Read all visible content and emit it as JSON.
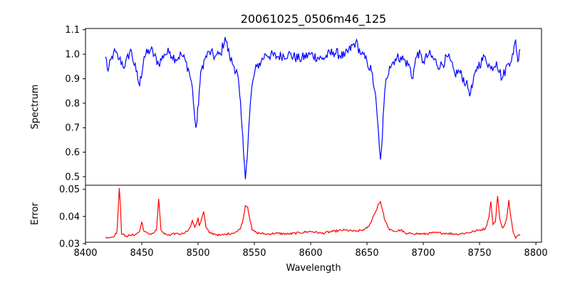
{
  "chart_data": [
    {
      "type": "line",
      "title": "20061025_0506m46_125",
      "xlabel": "",
      "ylabel": "Spectrum",
      "xlim": [
        8400,
        8805
      ],
      "ylim": [
        0.465,
        1.105
      ],
      "yticks": [
        "0.5",
        "0.6",
        "0.7",
        "0.8",
        "0.9",
        "1.0",
        "1.1"
      ],
      "grid": false,
      "series": [
        {
          "color": "#0000ff",
          "anchors": [
            [
              8418,
              0.99
            ],
            [
              8420,
              0.93
            ],
            [
              8425,
              1.01
            ],
            [
              8430,
              0.98
            ],
            [
              8435,
              0.95
            ],
            [
              8440,
              1.02
            ],
            [
              8445,
              0.93
            ],
            [
              8448,
              0.87
            ],
            [
              8452,
              0.99
            ],
            [
              8458,
              1.02
            ],
            [
              8465,
              0.96
            ],
            [
              8470,
              1.0
            ],
            [
              8475,
              1.01
            ],
            [
              8480,
              0.98
            ],
            [
              8485,
              1.0
            ],
            [
              8489,
              0.97
            ],
            [
              8492,
              0.93
            ],
            [
              8495,
              0.86
            ],
            [
              8497,
              0.74
            ],
            [
              8498,
              0.7
            ],
            [
              8499,
              0.72
            ],
            [
              8501,
              0.85
            ],
            [
              8503,
              0.94
            ],
            [
              8506,
              0.98
            ],
            [
              8510,
              1.01
            ],
            [
              8515,
              0.99
            ],
            [
              8520,
              1.0
            ],
            [
              8524,
              1.07
            ],
            [
              8528,
              0.99
            ],
            [
              8532,
              0.95
            ],
            [
              8535,
              0.92
            ],
            [
              8537,
              0.83
            ],
            [
              8539,
              0.7
            ],
            [
              8541,
              0.56
            ],
            [
              8542,
              0.49
            ],
            [
              8543,
              0.55
            ],
            [
              8545,
              0.7
            ],
            [
              8547,
              0.83
            ],
            [
              8549,
              0.9
            ],
            [
              8552,
              0.95
            ],
            [
              8556,
              0.97
            ],
            [
              8560,
              1.0
            ],
            [
              8570,
              0.99
            ],
            [
              8580,
              1.0
            ],
            [
              8590,
              0.98
            ],
            [
              8600,
              1.0
            ],
            [
              8610,
              0.98
            ],
            [
              8620,
              1.01
            ],
            [
              8630,
              0.99
            ],
            [
              8640,
              1.05
            ],
            [
              8645,
              1.0
            ],
            [
              8650,
              0.97
            ],
            [
              8654,
              0.93
            ],
            [
              8657,
              0.85
            ],
            [
              8659,
              0.75
            ],
            [
              8661,
              0.62
            ],
            [
              8662,
              0.57
            ],
            [
              8663,
              0.62
            ],
            [
              8665,
              0.79
            ],
            [
              8667,
              0.9
            ],
            [
              8670,
              0.95
            ],
            [
              8675,
              0.98
            ],
            [
              8680,
              0.99
            ],
            [
              8688,
              0.95
            ],
            [
              8690,
              0.9
            ],
            [
              8695,
              1.01
            ],
            [
              8700,
              0.97
            ],
            [
              8705,
              1.0
            ],
            [
              8715,
              0.95
            ],
            [
              8722,
              0.99
            ],
            [
              8728,
              0.92
            ],
            [
              8732,
              0.93
            ],
            [
              8738,
              0.88
            ],
            [
              8742,
              0.84
            ],
            [
              8748,
              0.95
            ],
            [
              8755,
              0.99
            ],
            [
              8760,
              0.94
            ],
            [
              8765,
              0.97
            ],
            [
              8770,
              0.9
            ],
            [
              8775,
              0.96
            ],
            [
              8780,
              1.0
            ],
            [
              8782,
              1.06
            ],
            [
              8784,
              0.97
            ],
            [
              8786,
              1.02
            ]
          ]
        }
      ]
    },
    {
      "type": "line",
      "xlabel": "Wavelength",
      "ylabel": "Error",
      "xlim": [
        8400,
        8805
      ],
      "ylim": [
        0.0305,
        0.0515
      ],
      "xticks": [
        "8400",
        "8450",
        "8500",
        "8550",
        "8600",
        "8650",
        "8700",
        "8750",
        "8800"
      ],
      "yticks": [
        "0.03",
        "0.04",
        "0.05"
      ],
      "grid": false,
      "series": [
        {
          "color": "#ff0000",
          "anchors": [
            [
              8418,
              0.0325
            ],
            [
              8422,
              0.0322
            ],
            [
              8426,
              0.033
            ],
            [
              8428,
              0.0345
            ],
            [
              8429,
              0.042
            ],
            [
              8430,
              0.0505
            ],
            [
              8431,
              0.044
            ],
            [
              8432,
              0.0335
            ],
            [
              8436,
              0.0328
            ],
            [
              8440,
              0.033
            ],
            [
              8445,
              0.0335
            ],
            [
              8448,
              0.0345
            ],
            [
              8450,
              0.038
            ],
            [
              8452,
              0.0345
            ],
            [
              8456,
              0.0335
            ],
            [
              8460,
              0.0338
            ],
            [
              8463,
              0.035
            ],
            [
              8464,
              0.0405
            ],
            [
              8465,
              0.0465
            ],
            [
              8466,
              0.041
            ],
            [
              8467,
              0.035
            ],
            [
              8470,
              0.0335
            ],
            [
              8475,
              0.033
            ],
            [
              8480,
              0.0338
            ],
            [
              8485,
              0.0335
            ],
            [
              8490,
              0.0345
            ],
            [
              8493,
              0.036
            ],
            [
              8495,
              0.0385
            ],
            [
              8497,
              0.036
            ],
            [
              8499,
              0.038
            ],
            [
              8500,
              0.0395
            ],
            [
              8501,
              0.0365
            ],
            [
              8503,
              0.039
            ],
            [
              8505,
              0.0418
            ],
            [
              8507,
              0.036
            ],
            [
              8510,
              0.034
            ],
            [
              8515,
              0.0335
            ],
            [
              8520,
              0.033
            ],
            [
              8525,
              0.0335
            ],
            [
              8530,
              0.0338
            ],
            [
              8535,
              0.0345
            ],
            [
              8538,
              0.036
            ],
            [
              8540,
              0.039
            ],
            [
              8542,
              0.044
            ],
            [
              8544,
              0.0435
            ],
            [
              8546,
              0.039
            ],
            [
              8548,
              0.035
            ],
            [
              8552,
              0.034
            ],
            [
              8560,
              0.0335
            ],
            [
              8570,
              0.0338
            ],
            [
              8580,
              0.0335
            ],
            [
              8590,
              0.034
            ],
            [
              8600,
              0.0345
            ],
            [
              8610,
              0.0338
            ],
            [
              8620,
              0.0345
            ],
            [
              8630,
              0.035
            ],
            [
              8640,
              0.0345
            ],
            [
              8648,
              0.0352
            ],
            [
              8652,
              0.0365
            ],
            [
              8655,
              0.0395
            ],
            [
              8658,
              0.042
            ],
            [
              8660,
              0.0445
            ],
            [
              8662,
              0.0455
            ],
            [
              8664,
              0.042
            ],
            [
              8666,
              0.0385
            ],
            [
              8670,
              0.035
            ],
            [
              8675,
              0.0345
            ],
            [
              8680,
              0.035
            ],
            [
              8685,
              0.0335
            ],
            [
              8690,
              0.0338
            ],
            [
              8700,
              0.0335
            ],
            [
              8710,
              0.034
            ],
            [
              8720,
              0.0338
            ],
            [
              8730,
              0.0335
            ],
            [
              8740,
              0.034
            ],
            [
              8745,
              0.0345
            ],
            [
              8750,
              0.035
            ],
            [
              8755,
              0.0355
            ],
            [
              8758,
              0.039
            ],
            [
              8760,
              0.0455
            ],
            [
              8762,
              0.037
            ],
            [
              8764,
              0.038
            ],
            [
              8766,
              0.0475
            ],
            [
              8768,
              0.039
            ],
            [
              8770,
              0.036
            ],
            [
              8772,
              0.0365
            ],
            [
              8774,
              0.039
            ],
            [
              8776,
              0.046
            ],
            [
              8778,
              0.039
            ],
            [
              8780,
              0.034
            ],
            [
              8782,
              0.032
            ],
            [
              8784,
              0.033
            ],
            [
              8786,
              0.033
            ]
          ]
        }
      ]
    }
  ]
}
